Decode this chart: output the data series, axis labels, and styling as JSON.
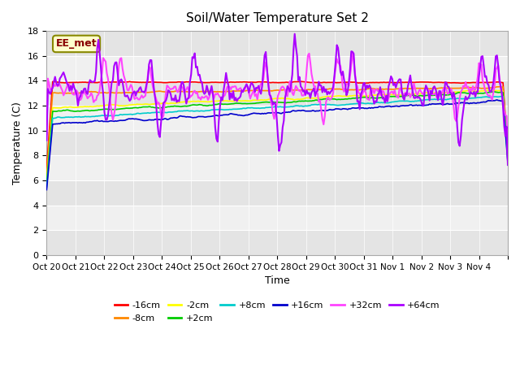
{
  "title": "Soil/Water Temperature Set 2",
  "xlabel": "Time",
  "ylabel": "Temperature (C)",
  "ylim": [
    0,
    18
  ],
  "yticks": [
    0,
    2,
    4,
    6,
    8,
    10,
    12,
    14,
    16,
    18
  ],
  "x_labels": [
    "Oct 20",
    "Oct 21",
    "Oct 22",
    "Oct 23",
    "Oct 24",
    "Oct 25",
    "Oct 26",
    "Oct 27",
    "Oct 28",
    "Oct 29",
    "Oct 30",
    "Oct 31",
    "Nov 1",
    "Nov 2",
    "Nov 3",
    "Nov 4"
  ],
  "legend_label": "EE_met",
  "series_labels": [
    "-16cm",
    "-8cm",
    "-2cm",
    "+2cm",
    "+8cm",
    "+16cm",
    "+32cm",
    "+64cm"
  ],
  "series_colors": [
    "#ff0000",
    "#ff8800",
    "#ffff00",
    "#00cc00",
    "#00cccc",
    "#0000cc",
    "#ff44ff",
    "#aa00ff"
  ],
  "plot_bg": "#f0f0f0",
  "days": 16
}
